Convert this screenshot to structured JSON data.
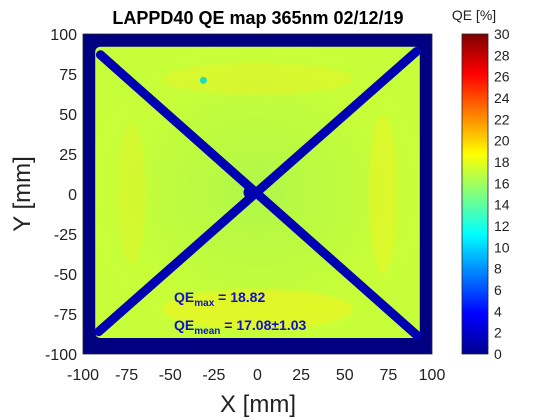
{
  "chart_data": {
    "type": "heatmap",
    "title": "LAPPD40 QE map 365nm 02/12/19",
    "xlabel": "X [mm]",
    "ylabel": "Y [mm]",
    "xlim": [
      -100,
      100
    ],
    "ylim": [
      -100,
      100
    ],
    "x_ticks": [
      "-100",
      "-75",
      "-50",
      "-25",
      "0",
      "25",
      "50",
      "75",
      "100"
    ],
    "y_ticks": [
      "100",
      "75",
      "50",
      "25",
      "0",
      "-25",
      "-50",
      "-75",
      "-100"
    ],
    "colorbar": {
      "label": "QE [%]",
      "range": [
        0,
        30
      ],
      "ticks": [
        "30",
        "28",
        "26",
        "24",
        "22",
        "20",
        "18",
        "16",
        "14",
        "12",
        "10",
        "8",
        "6",
        "4",
        "2",
        "0"
      ],
      "colormap": "jet"
    },
    "active_region": {
      "x": [
        -93,
        93
      ],
      "y": [
        -90,
        92
      ]
    },
    "background_qe": 0,
    "typical_qe": 17.08,
    "diagonal_spacer_qe": 1.5,
    "annotations": {
      "qe_max_symbol": "QE",
      "qe_max_sub": "max",
      "qe_max_value": " = 18.82",
      "qe_mean_symbol": "QE",
      "qe_mean_sub": "mean",
      "qe_mean_value": " = 17.08±1.03"
    }
  }
}
